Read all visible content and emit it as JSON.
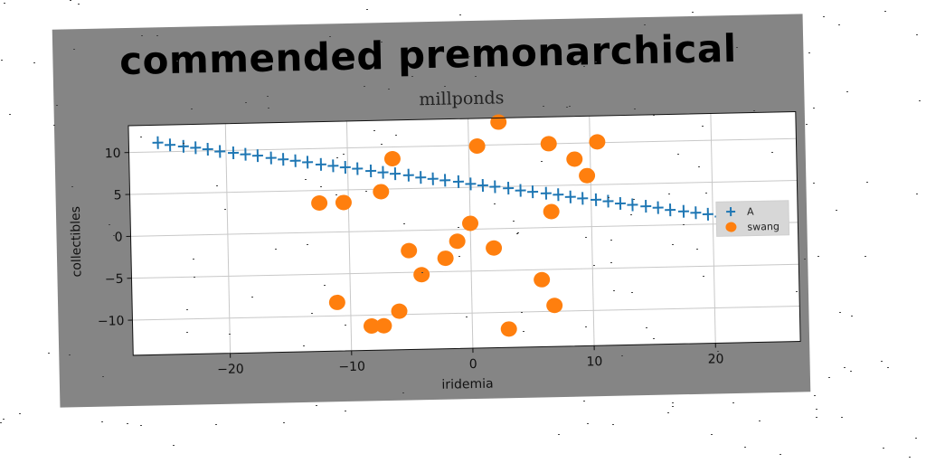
{
  "headline": "commended premonarchical",
  "colors": {
    "series_a": "#1f77b4",
    "series_swang": "#ff7f0e",
    "background_panel": "#858585",
    "plot_bg": "#ffffff",
    "grid": "#c8c8c8",
    "legend_bg": "#d7d7d7"
  },
  "chart_data": {
    "type": "scatter",
    "title": "millponds",
    "xlabel": "iridemia",
    "ylabel": "collectibles",
    "xlim": [
      -28,
      27
    ],
    "ylim": [
      -14.2,
      13.2
    ],
    "xticks": [
      -20,
      -10,
      0,
      10,
      20
    ],
    "yticks": [
      -10,
      -5,
      0,
      5,
      10
    ],
    "xtick_labels": [
      "−20",
      "−10",
      "0",
      "10",
      "20"
    ],
    "ytick_labels": [
      "−10",
      "−5",
      "0",
      "5",
      "10"
    ],
    "grid": true,
    "legend_position": "right",
    "series": [
      {
        "name": "A",
        "marker": "plus",
        "x": [
          -25.6,
          -24.6,
          -23.5,
          -22.5,
          -21.5,
          -20.5,
          -19.4,
          -18.4,
          -17.4,
          -16.3,
          -15.3,
          -14.3,
          -13.3,
          -12.2,
          -11.2,
          -10.2,
          -9.2,
          -8.1,
          -7.1,
          -6.1,
          -5.0,
          -4.0,
          -3.0,
          -2.0,
          -0.9,
          0.1,
          1.1,
          2.1,
          3.2,
          4.2,
          5.2,
          6.3,
          7.3,
          8.3,
          9.3,
          10.4,
          11.4,
          12.4,
          13.4,
          14.5,
          15.5,
          16.5,
          17.6,
          18.6,
          19.6,
          20.6,
          21.7,
          22.7,
          23.7,
          24.7
        ],
        "y": [
          11.1,
          10.8,
          10.6,
          10.4,
          10.2,
          9.9,
          9.7,
          9.5,
          9.3,
          9.0,
          8.8,
          8.6,
          8.4,
          8.1,
          7.9,
          7.7,
          7.5,
          7.2,
          7.0,
          6.8,
          6.6,
          6.3,
          6.1,
          5.9,
          5.7,
          5.4,
          5.2,
          5.0,
          4.8,
          4.5,
          4.3,
          4.1,
          3.9,
          3.6,
          3.4,
          3.2,
          3.0,
          2.7,
          2.5,
          2.3,
          2.1,
          1.8,
          1.6,
          1.4,
          1.2,
          0.9,
          0.7,
          0.5,
          0.3,
          0.0
        ]
      },
      {
        "name": "swang",
        "marker": "circle",
        "x": [
          2.5,
          0.7,
          6.6,
          10.6,
          8.7,
          -6.3,
          -7.3,
          9.7,
          -12.4,
          -10.4,
          6.7,
          0.0,
          -1.1,
          1.9,
          -5.1,
          -2.1,
          -4.1,
          5.8,
          -11.1,
          -6.0,
          6.8,
          -8.3,
          -7.3,
          3.0
        ],
        "y": [
          12.7,
          9.9,
          10.0,
          10.1,
          8.1,
          8.6,
          4.7,
          6.1,
          3.5,
          3.5,
          1.9,
          0.7,
          -1.4,
          -2.3,
          -2.4,
          -3.4,
          -5.3,
          -6.2,
          -8.4,
          -9.6,
          -9.3,
          -11.3,
          -11.3,
          -12.0
        ]
      }
    ]
  }
}
